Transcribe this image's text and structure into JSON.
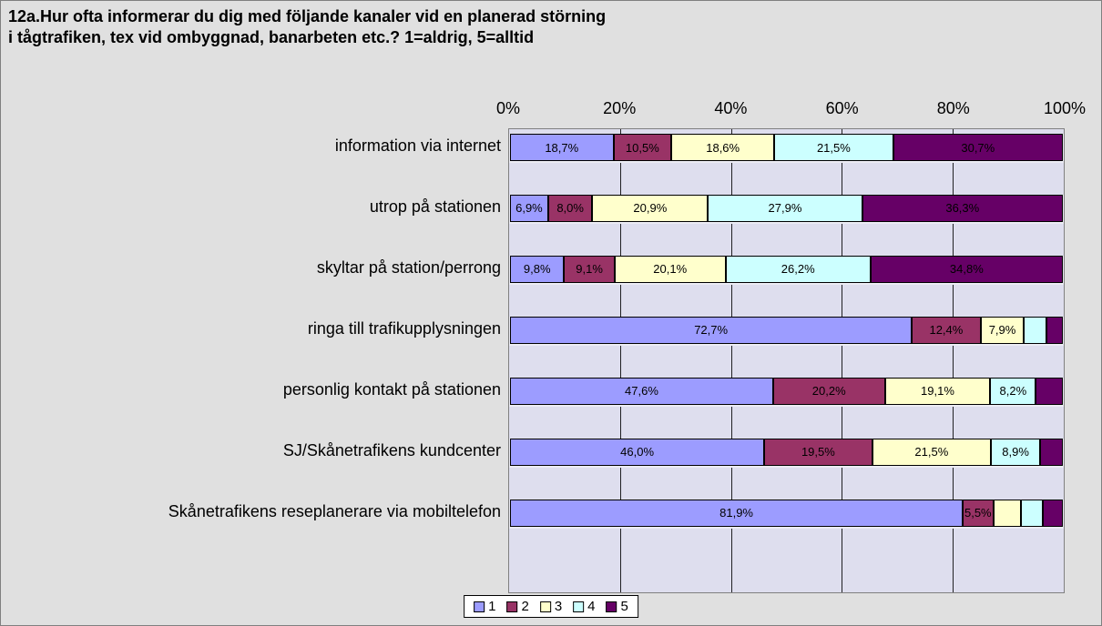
{
  "chart": {
    "type": "stacked-bar-horizontal",
    "title": "12a.Hur ofta informerar du dig med följande kanaler vid en planerad störning\ni tågtrafiken, tex vid ombyggnad, banarbeten etc.? 1=aldrig, 5=alltid",
    "title_fontsize": 18,
    "background_color": "#e0e0e0",
    "plot_background": "#dedeee",
    "alt_band_color": "#ececf4",
    "xlim": [
      0,
      100
    ],
    "xtick_step": 20,
    "xticks": [
      "0%",
      "20%",
      "40%",
      "60%",
      "80%",
      "100%"
    ],
    "series_colors": [
      "#9c9cff",
      "#993366",
      "#ffffcc",
      "#ccffff",
      "#660066"
    ],
    "legend": [
      "1",
      "2",
      "3",
      "4",
      "5"
    ],
    "categories": [
      {
        "label": "information via internet",
        "values": [
          18.7,
          10.5,
          18.6,
          21.5,
          30.7
        ],
        "value_labels": [
          "18,7%",
          "10,5%",
          "18,6%",
          "21,5%",
          "30,7%"
        ]
      },
      {
        "label": "utrop på stationen",
        "values": [
          6.9,
          8.0,
          20.9,
          27.9,
          36.3
        ],
        "value_labels": [
          "6,9%",
          "8,0%",
          "20,9%",
          "27,9%",
          "36,3%"
        ]
      },
      {
        "label": "skyltar på station/perrong",
        "values": [
          9.8,
          9.1,
          20.1,
          26.2,
          34.8
        ],
        "value_labels": [
          "9,8%",
          "9,1%",
          "20,1%",
          "26,2%",
          "34,8%"
        ]
      },
      {
        "label": "ringa till trafikupplysningen",
        "values": [
          72.7,
          12.4,
          7.9,
          4.0,
          3.0
        ],
        "value_labels": [
          "72,7%",
          "12,4%",
          "7,9%",
          "",
          ""
        ]
      },
      {
        "label": "personlig kontakt på stationen",
        "values": [
          47.6,
          20.2,
          19.1,
          8.2,
          4.9
        ],
        "value_labels": [
          "47,6%",
          "20,2%",
          "19,1%",
          "8,2%",
          ""
        ]
      },
      {
        "label": "SJ/Skånetrafikens kundcenter",
        "values": [
          46.0,
          19.5,
          21.5,
          8.9,
          4.1
        ],
        "value_labels": [
          "46,0%",
          "19,5%",
          "21,5%",
          "8,9%",
          ""
        ]
      },
      {
        "label": "Skånetrafikens reseplanerare via mobiltelefon",
        "values": [
          81.9,
          5.5,
          5.0,
          4.0,
          3.6
        ],
        "value_labels": [
          "81,9%",
          "5,5%",
          "",
          "",
          ""
        ]
      }
    ]
  }
}
